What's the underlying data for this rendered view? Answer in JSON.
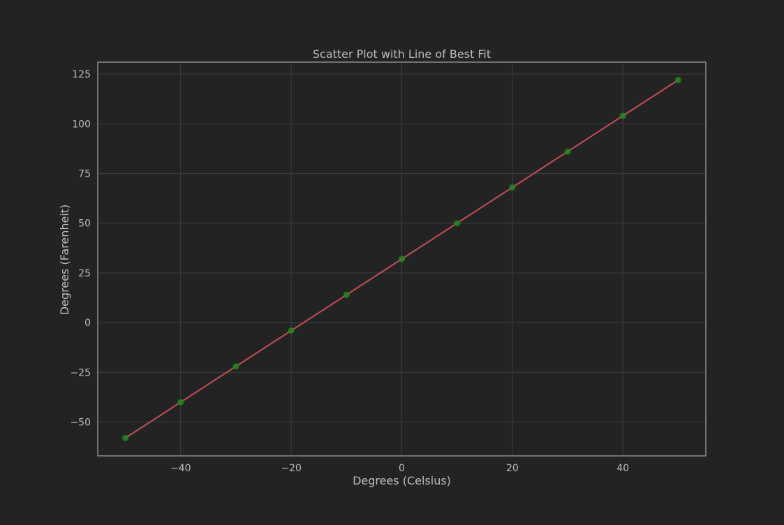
{
  "chart_data": {
    "type": "scatter",
    "title": "Scatter Plot with Line of Best Fit",
    "xlabel": "Degrees (Celsius)",
    "ylabel": "Degrees (Farenheit)",
    "xlim": [
      -55,
      55
    ],
    "ylim": [
      -67,
      131
    ],
    "xticks": [
      -40,
      -20,
      0,
      20,
      40
    ],
    "yticks": [
      -50,
      -25,
      0,
      25,
      50,
      75,
      100,
      125
    ],
    "grid": true,
    "series": [
      {
        "kind": "scatter",
        "color": "#1f8a1f",
        "x": [
          -50,
          -40,
          -30,
          -20,
          -10,
          0,
          10,
          20,
          30,
          40,
          50
        ],
        "y": [
          -58,
          -40,
          -22,
          -4,
          14,
          32,
          50,
          68,
          86,
          104,
          122
        ]
      },
      {
        "kind": "line",
        "color": "#c44e52",
        "x": [
          -50,
          50
        ],
        "y": [
          -58,
          122
        ]
      }
    ]
  },
  "colors": {
    "background": "#232323",
    "axes_frame": "#8c8c8c",
    "grid": "#3a3a3a",
    "text": "#bdbdbd"
  }
}
